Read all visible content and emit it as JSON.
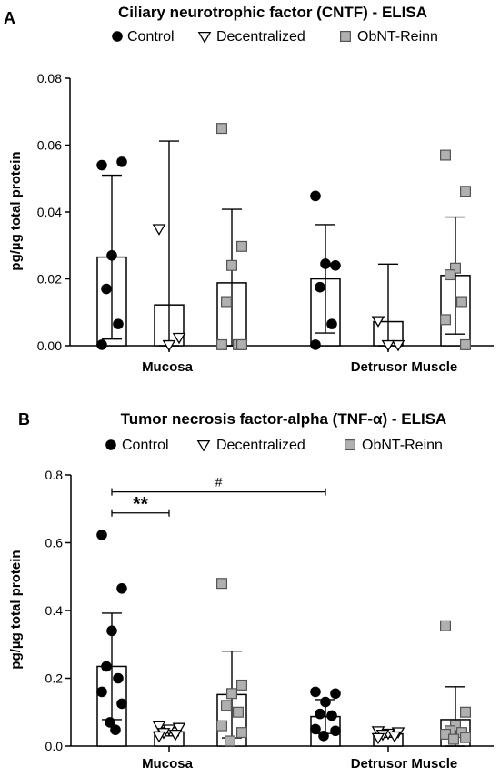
{
  "chart_data": [
    {
      "type": "bar",
      "panel": "A",
      "title": "Ciliary neurotrophic factor (CNTF) - ELISA",
      "ylabel": "pg/µg total protein",
      "ylim": [
        0,
        0.08
      ],
      "yticks": [
        "0.00",
        "0.02",
        "0.04",
        "0.06",
        "0.08"
      ],
      "yticks_values": [
        0,
        0.02,
        0.04,
        0.06,
        0.08
      ],
      "categories": [
        "Mucosa",
        "Detrusor Muscle"
      ],
      "legend_position": "top",
      "series": [
        {
          "name": "Control",
          "marker": "circle",
          "color": "#000000",
          "means": [
            0.0265,
            0.02
          ],
          "sd": [
            0.0245,
            0.0162
          ],
          "points": [
            [
              0.054,
              0.055,
              0.027,
              0.017,
              0.0065,
              0.0003
            ],
            [
              0.0448,
              0.024,
              0.0245,
              0.0175,
              0.0065,
              0.0003
            ]
          ]
        },
        {
          "name": "Decentralized",
          "marker": "triangle-down",
          "color": "#ffffff",
          "means": [
            0.0122,
            0.0072
          ],
          "sd": [
            0.049,
            0.0172
          ],
          "points": [
            [
              0.035,
              0.0025,
              0.0003
            ],
            [
              0.0075,
              0.0003,
              0.0003
            ]
          ]
        },
        {
          "name": "ObNT-Reinn",
          "marker": "square",
          "color": "#b0b0b0",
          "means": [
            0.0188,
            0.021
          ],
          "sd": [
            0.022,
            0.0175
          ],
          "points": [
            [
              0.065,
              0.0297,
              0.024,
              0.0132,
              0.0003,
              0.0003,
              0.0003
            ],
            [
              0.057,
              0.0462,
              0.0232,
              0.0212,
              0.0132,
              0.0078,
              0.0003
            ]
          ]
        }
      ],
      "annotations": []
    },
    {
      "type": "bar",
      "panel": "B",
      "title": "Tumor necrosis factor-alpha (TNF-α) - ELISA",
      "ylabel": "pg/µg total protein",
      "ylim": [
        0,
        0.8
      ],
      "yticks": [
        "0.0",
        "0.2",
        "0.4",
        "0.6",
        "0.8"
      ],
      "yticks_values": [
        0,
        0.2,
        0.4,
        0.6,
        0.8
      ],
      "categories": [
        "Mucosa",
        "Detrusor Muscle"
      ],
      "legend_position": "top",
      "series": [
        {
          "name": "Control",
          "marker": "circle",
          "color": "#000000",
          "means": [
            0.235,
            0.087
          ],
          "sd": [
            0.157,
            0.05
          ],
          "points": [
            [
              0.623,
              0.465,
              0.34,
              0.235,
              0.2,
              0.16,
              0.125,
              0.07,
              0.048
            ],
            [
              0.16,
              0.155,
              0.13,
              0.095,
              0.09,
              0.05,
              0.045,
              0.03
            ]
          ]
        },
        {
          "name": "Decentralized",
          "marker": "triangle-down",
          "color": "#ffffff",
          "means": [
            0.042,
            0.036
          ],
          "sd": [
            0.012,
            0.01
          ],
          "points": [
            [
              0.06,
              0.055,
              0.05,
              0.04,
              0.035,
              0.03
            ],
            [
              0.045,
              0.042,
              0.038,
              0.035,
              0.03,
              0.025
            ]
          ]
        },
        {
          "name": "ObNT-Reinn",
          "marker": "square",
          "color": "#b0b0b0",
          "means": [
            0.152,
            0.078
          ],
          "sd": [
            0.128,
            0.097
          ],
          "points": [
            [
              0.48,
              0.18,
              0.155,
              0.12,
              0.1,
              0.06,
              0.04,
              0.015
            ],
            [
              0.355,
              0.1,
              0.06,
              0.045,
              0.04,
              0.035,
              0.025,
              0.02
            ]
          ]
        }
      ],
      "annotations": [
        {
          "label": "**",
          "from": "Control-Mucosa",
          "to": "Decentralized-Mucosa",
          "y": 0.688
        },
        {
          "label": "#",
          "from": "Control-Mucosa",
          "to": "Control-Detrusor Muscle",
          "y": 0.75
        }
      ]
    }
  ]
}
